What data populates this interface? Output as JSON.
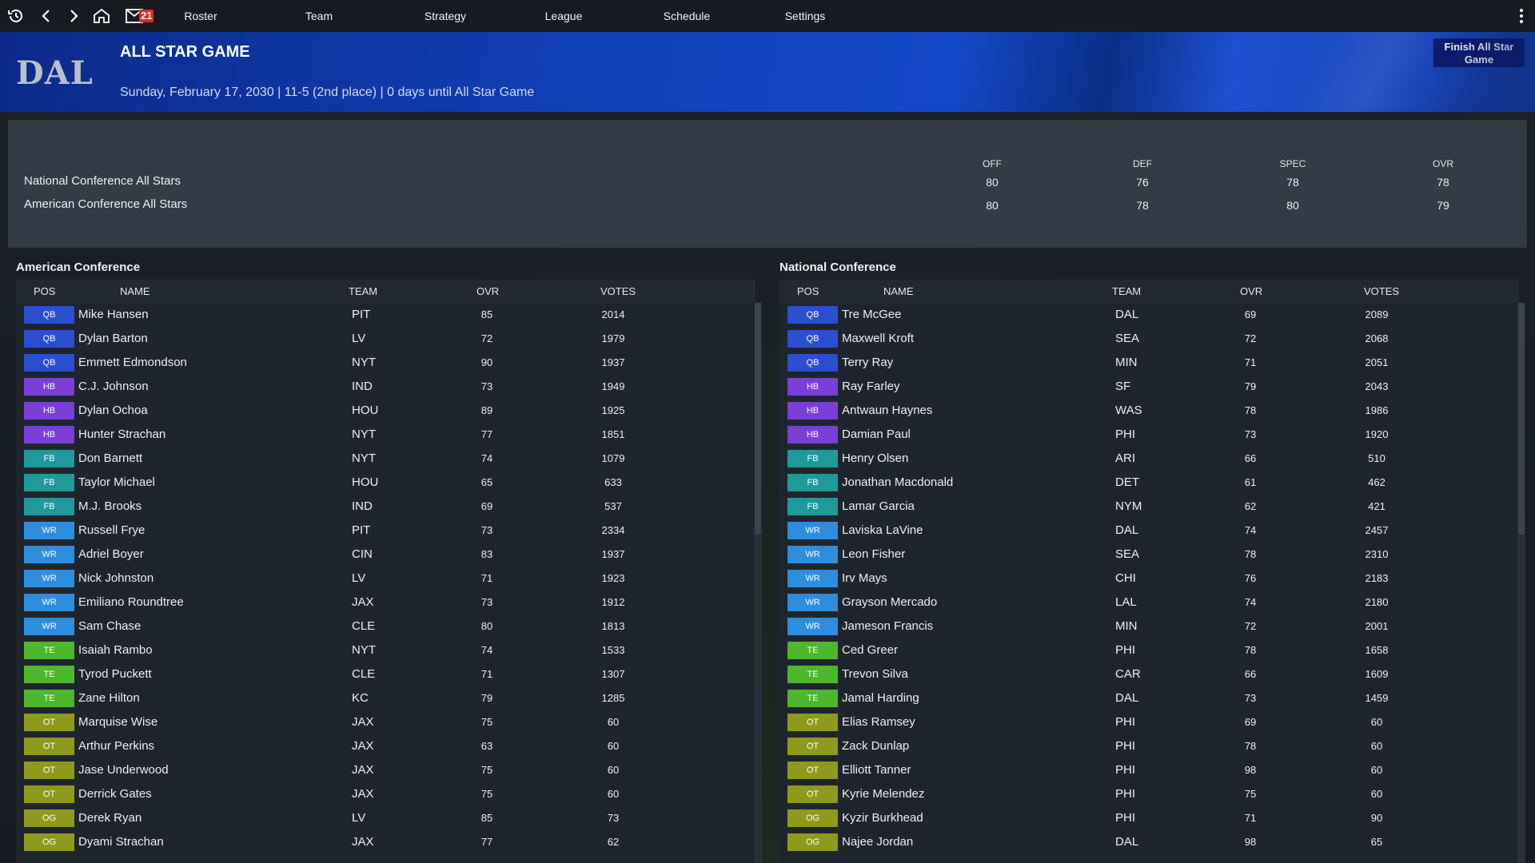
{
  "nav": {
    "mail_count": "21",
    "items": [
      "Roster",
      "Team",
      "Strategy",
      "League",
      "Schedule",
      "Settings"
    ]
  },
  "header": {
    "team_abbr": "DAL",
    "title": "ALL STAR GAME",
    "subtitle": "Sunday, February 17, 2030 | 11-5 (2nd place) | 0 days until All Star Game",
    "finish_button": "Finish All Star Game"
  },
  "summary": {
    "columns": [
      "OFF",
      "DEF",
      "SPEC",
      "OVR"
    ],
    "rows": [
      {
        "name": "National Conference All Stars",
        "values": [
          "80",
          "76",
          "78",
          "78"
        ]
      },
      {
        "name": "American Conference All Stars",
        "values": [
          "80",
          "78",
          "80",
          "79"
        ]
      }
    ]
  },
  "table_columns": [
    "POS",
    "NAME",
    "TEAM",
    "OVR",
    "VOTES"
  ],
  "position_colors": {
    "QB": "#2a4fd0",
    "HB": "#7b3ed6",
    "FB": "#1f9a9a",
    "WR": "#2d8ee0",
    "TE": "#4cb82b",
    "OT": "#8f9a1c",
    "OG": "#8f9a1c"
  },
  "american": {
    "title": "American Conference",
    "players": [
      {
        "pos": "QB",
        "name": "Mike Hansen",
        "team": "PIT",
        "ovr": "85",
        "votes": "2014"
      },
      {
        "pos": "QB",
        "name": "Dylan Barton",
        "team": "LV",
        "ovr": "72",
        "votes": "1979"
      },
      {
        "pos": "QB",
        "name": "Emmett Edmondson",
        "team": "NYT",
        "ovr": "90",
        "votes": "1937"
      },
      {
        "pos": "HB",
        "name": "C.J. Johnson",
        "team": "IND",
        "ovr": "73",
        "votes": "1949"
      },
      {
        "pos": "HB",
        "name": "Dylan Ochoa",
        "team": "HOU",
        "ovr": "89",
        "votes": "1925"
      },
      {
        "pos": "HB",
        "name": "Hunter Strachan",
        "team": "NYT",
        "ovr": "77",
        "votes": "1851"
      },
      {
        "pos": "FB",
        "name": "Don Barnett",
        "team": "NYT",
        "ovr": "74",
        "votes": "1079"
      },
      {
        "pos": "FB",
        "name": "Taylor Michael",
        "team": "HOU",
        "ovr": "65",
        "votes": "633"
      },
      {
        "pos": "FB",
        "name": "M.J. Brooks",
        "team": "IND",
        "ovr": "69",
        "votes": "537"
      },
      {
        "pos": "WR",
        "name": "Russell Frye",
        "team": "PIT",
        "ovr": "73",
        "votes": "2334"
      },
      {
        "pos": "WR",
        "name": "Adriel Boyer",
        "team": "CIN",
        "ovr": "83",
        "votes": "1937"
      },
      {
        "pos": "WR",
        "name": "Nick Johnston",
        "team": "LV",
        "ovr": "71",
        "votes": "1923"
      },
      {
        "pos": "WR",
        "name": "Emiliano Roundtree",
        "team": "JAX",
        "ovr": "73",
        "votes": "1912"
      },
      {
        "pos": "WR",
        "name": "Sam Chase",
        "team": "CLE",
        "ovr": "80",
        "votes": "1813"
      },
      {
        "pos": "TE",
        "name": "Isaiah Rambo",
        "team": "NYT",
        "ovr": "74",
        "votes": "1533"
      },
      {
        "pos": "TE",
        "name": "Tyrod Puckett",
        "team": "CLE",
        "ovr": "71",
        "votes": "1307"
      },
      {
        "pos": "TE",
        "name": "Zane Hilton",
        "team": "KC",
        "ovr": "79",
        "votes": "1285"
      },
      {
        "pos": "OT",
        "name": "Marquise Wise",
        "team": "JAX",
        "ovr": "75",
        "votes": "60"
      },
      {
        "pos": "OT",
        "name": "Arthur Perkins",
        "team": "JAX",
        "ovr": "63",
        "votes": "60"
      },
      {
        "pos": "OT",
        "name": "Jase Underwood",
        "team": "JAX",
        "ovr": "75",
        "votes": "60"
      },
      {
        "pos": "OT",
        "name": "Derrick Gates",
        "team": "JAX",
        "ovr": "75",
        "votes": "60"
      },
      {
        "pos": "OG",
        "name": "Derek Ryan",
        "team": "LV",
        "ovr": "85",
        "votes": "73"
      },
      {
        "pos": "OG",
        "name": "Dyami Strachan",
        "team": "JAX",
        "ovr": "77",
        "votes": "62"
      }
    ]
  },
  "national": {
    "title": "National Conference",
    "players": [
      {
        "pos": "QB",
        "name": "Tre McGee",
        "team": "DAL",
        "ovr": "69",
        "votes": "2089"
      },
      {
        "pos": "QB",
        "name": "Maxwell Kroft",
        "team": "SEA",
        "ovr": "72",
        "votes": "2068"
      },
      {
        "pos": "QB",
        "name": "Terry Ray",
        "team": "MIN",
        "ovr": "71",
        "votes": "2051"
      },
      {
        "pos": "HB",
        "name": "Ray Farley",
        "team": "SF",
        "ovr": "79",
        "votes": "2043"
      },
      {
        "pos": "HB",
        "name": "Antwaun Haynes",
        "team": "WAS",
        "ovr": "78",
        "votes": "1986"
      },
      {
        "pos": "HB",
        "name": "Damian Paul",
        "team": "PHI",
        "ovr": "73",
        "votes": "1920"
      },
      {
        "pos": "FB",
        "name": "Henry Olsen",
        "team": "ARI",
        "ovr": "66",
        "votes": "510"
      },
      {
        "pos": "FB",
        "name": "Jonathan Macdonald",
        "team": "DET",
        "ovr": "61",
        "votes": "462"
      },
      {
        "pos": "FB",
        "name": "Lamar Garcia",
        "team": "NYM",
        "ovr": "62",
        "votes": "421"
      },
      {
        "pos": "WR",
        "name": "Laviska LaVine",
        "team": "DAL",
        "ovr": "74",
        "votes": "2457"
      },
      {
        "pos": "WR",
        "name": "Leon Fisher",
        "team": "SEA",
        "ovr": "78",
        "votes": "2310"
      },
      {
        "pos": "WR",
        "name": "Irv Mays",
        "team": "CHI",
        "ovr": "76",
        "votes": "2183"
      },
      {
        "pos": "WR",
        "name": "Grayson Mercado",
        "team": "LAL",
        "ovr": "74",
        "votes": "2180"
      },
      {
        "pos": "WR",
        "name": "Jameson Francis",
        "team": "MIN",
        "ovr": "72",
        "votes": "2001"
      },
      {
        "pos": "TE",
        "name": "Ced Greer",
        "team": "PHI",
        "ovr": "78",
        "votes": "1658"
      },
      {
        "pos": "TE",
        "name": "Trevon Silva",
        "team": "CAR",
        "ovr": "66",
        "votes": "1609"
      },
      {
        "pos": "TE",
        "name": "Jamal Harding",
        "team": "DAL",
        "ovr": "73",
        "votes": "1459"
      },
      {
        "pos": "OT",
        "name": "Elias Ramsey",
        "team": "PHI",
        "ovr": "69",
        "votes": "60"
      },
      {
        "pos": "OT",
        "name": "Zack Dunlap",
        "team": "PHI",
        "ovr": "78",
        "votes": "60"
      },
      {
        "pos": "OT",
        "name": "Elliott Tanner",
        "team": "PHI",
        "ovr": "98",
        "votes": "60"
      },
      {
        "pos": "OT",
        "name": "Kyrie Melendez",
        "team": "PHI",
        "ovr": "75",
        "votes": "60"
      },
      {
        "pos": "OG",
        "name": "Kyzir Burkhead",
        "team": "PHI",
        "ovr": "71",
        "votes": "90"
      },
      {
        "pos": "OG",
        "name": "Najee Jordan",
        "team": "DAL",
        "ovr": "98",
        "votes": "65"
      }
    ]
  }
}
